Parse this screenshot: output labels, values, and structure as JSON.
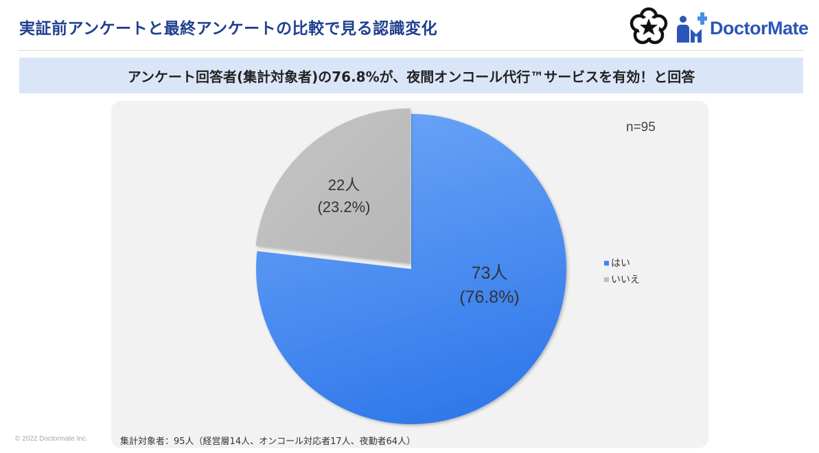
{
  "header": {
    "title": "実証前アンケートと最終アンケートの比較で見る認識変化",
    "brand_name": "DoctorMate"
  },
  "banner": {
    "text": "アンケート回答者(集計対象者)の76.8%が、夜間オンコール代行™サービスを有効！と回答"
  },
  "chart_data": {
    "type": "pie",
    "n_label": "n=95",
    "categories": [
      "はい",
      "いいえ"
    ],
    "values": [
      73,
      22
    ],
    "percentages": [
      76.8,
      23.2
    ],
    "data_labels": [
      {
        "count": "73人",
        "percent": "(76.8%)"
      },
      {
        "count": "22人",
        "percent": "(23.2%)"
      }
    ],
    "colors": [
      "#3f86f0",
      "#bfbfbf"
    ],
    "legend_position": "right",
    "exploded": "いいえ"
  },
  "footnote": "集計対象者：95人（経営層14人、オンコール対応者17人、夜勤者64人）",
  "copyright": "© 2022 Doctormate Inc."
}
